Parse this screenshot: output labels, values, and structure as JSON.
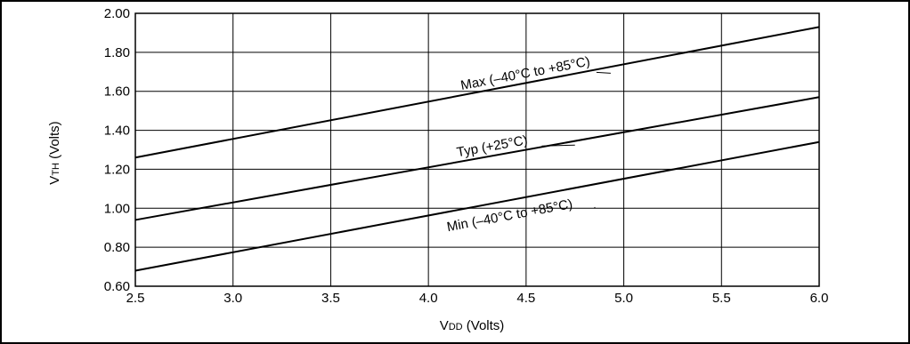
{
  "chart_data": {
    "type": "line",
    "title": "",
    "xlabel": {
      "main": "V",
      "sub": "DD",
      "unit": " (Volts)"
    },
    "ylabel": {
      "main": "V",
      "sub": "TH",
      "unit": " (Volts)"
    },
    "xlim": [
      2.5,
      6.0
    ],
    "ylim": [
      0.6,
      2.0
    ],
    "xticks": [
      "2.5",
      "3.0",
      "3.5",
      "4.0",
      "4.5",
      "5.0",
      "5.5",
      "6.0"
    ],
    "yticks": [
      "0.60",
      "0.80",
      "1.00",
      "1.20",
      "1.40",
      "1.60",
      "1.80",
      "2.00"
    ],
    "grid": true,
    "series": [
      {
        "name": "Max (–40°C to +85°C)",
        "x": [
          2.5,
          6.0
        ],
        "y": [
          1.26,
          1.93
        ]
      },
      {
        "name": "Typ (+25°C)",
        "x": [
          2.5,
          6.0
        ],
        "y": [
          0.94,
          1.57
        ]
      },
      {
        "name": "Min (–40°C to +85°C)",
        "x": [
          2.5,
          6.0
        ],
        "y": [
          0.68,
          1.34
        ]
      }
    ],
    "annotations": [
      "Max (–40°C to +85°C)",
      "Typ (+25°C)",
      "Min (–40°C to +85°C)"
    ]
  }
}
